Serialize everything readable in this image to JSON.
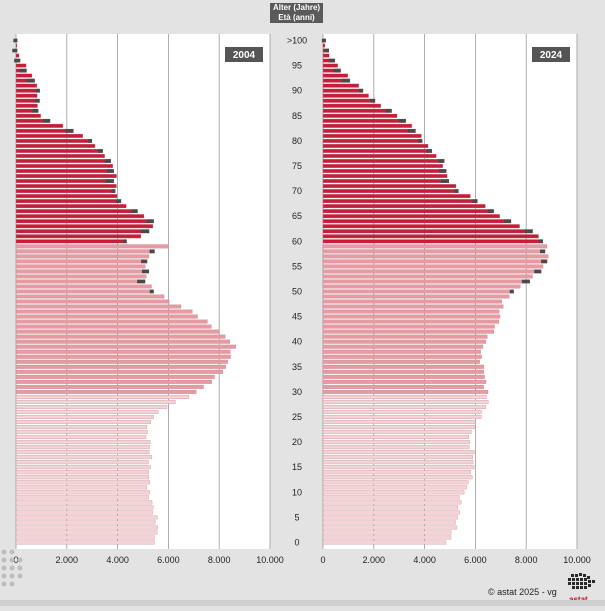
{
  "axis_title": {
    "line1": "Alter (Jahre)",
    "line2": "Età (anni)"
  },
  "footer": {
    "copyright_symbol": "©",
    "credit": "astat 2025 - vg"
  },
  "logo": {
    "text": "astat",
    "icon": "south-tyrol-map-icon",
    "color": "#c0142a"
  },
  "colors": {
    "light_bar": "#f4d3d6",
    "mid_bar": "#e89aa3",
    "dark_bar": "#c41e3a",
    "surplus": "#4a4a4a",
    "bar_outline": "#c08089"
  },
  "chart_data": [
    {
      "type": "bar",
      "orientation": "horizontal",
      "title": "2004",
      "xlim": [
        0,
        10000
      ],
      "x_ticks": [
        "0",
        "2.000",
        "4.000",
        "6.000",
        "8.000",
        "10.000"
      ],
      "y_ticks": [
        ">100",
        "95",
        "90",
        "85",
        "80",
        "75",
        "70",
        "65",
        "60",
        "55",
        "50",
        "45",
        "40",
        "35",
        "30",
        "25",
        "20",
        "15",
        "10",
        "5",
        "0"
      ],
      "anchors": [
        [
          0,
          5300
        ],
        [
          2,
          5450
        ],
        [
          5,
          5500
        ],
        [
          8,
          5450
        ],
        [
          10,
          5300
        ],
        [
          12,
          5250
        ],
        [
          15,
          5150
        ],
        [
          18,
          5200
        ],
        [
          20,
          5250
        ],
        [
          22,
          5200
        ],
        [
          25,
          5500
        ],
        [
          27,
          5900
        ],
        [
          29,
          6700
        ],
        [
          31,
          7300
        ],
        [
          33,
          7800
        ],
        [
          35,
          8300
        ],
        [
          37,
          8500
        ],
        [
          39,
          8700
        ],
        [
          40,
          8550
        ],
        [
          42,
          8000
        ],
        [
          44,
          7400
        ],
        [
          46,
          6800
        ],
        [
          48,
          6000
        ],
        [
          50,
          5500
        ],
        [
          52,
          5200
        ],
        [
          54,
          5300
        ],
        [
          56,
          5150
        ],
        [
          58,
          5400
        ],
        [
          59,
          5900
        ],
        [
          60,
          4300
        ],
        [
          62,
          5200
        ],
        [
          64,
          5400
        ],
        [
          66,
          4800
        ],
        [
          68,
          4200
        ],
        [
          70,
          4000
        ],
        [
          72,
          3900
        ],
        [
          74,
          3800
        ],
        [
          76,
          3600
        ],
        [
          78,
          3300
        ],
        [
          80,
          3000
        ],
        [
          82,
          2400
        ],
        [
          83,
          1900
        ],
        [
          84,
          1500
        ],
        [
          85,
          1000
        ],
        [
          87,
          850
        ],
        [
          89,
          800
        ],
        [
          91,
          750
        ],
        [
          93,
          550
        ],
        [
          95,
          380
        ],
        [
          97,
          200
        ],
        [
          99,
          100
        ],
        [
          100,
          60
        ]
      ]
    },
    {
      "type": "bar",
      "orientation": "horizontal",
      "title": "2024",
      "xlim": [
        0,
        10000
      ],
      "x_ticks": [
        "0",
        "2.000",
        "4.000",
        "6.000",
        "8.000",
        "10.000"
      ],
      "y_ticks": [
        ">100",
        "95",
        "90",
        "85",
        "80",
        "75",
        "70",
        "65",
        "60",
        "55",
        "50",
        "45",
        "40",
        "35",
        "30",
        "25",
        "20",
        "15",
        "10",
        "5",
        "0"
      ],
      "anchors": [
        [
          0,
          4750
        ],
        [
          3,
          5200
        ],
        [
          6,
          5450
        ],
        [
          9,
          5500
        ],
        [
          12,
          5700
        ],
        [
          15,
          5800
        ],
        [
          18,
          5900
        ],
        [
          20,
          5800
        ],
        [
          22,
          5950
        ],
        [
          25,
          6200
        ],
        [
          28,
          6400
        ],
        [
          31,
          6300
        ],
        [
          34,
          6400
        ],
        [
          37,
          6300
        ],
        [
          40,
          6400
        ],
        [
          42,
          6600
        ],
        [
          44,
          6800
        ],
        [
          46,
          6900
        ],
        [
          48,
          7100
        ],
        [
          50,
          7600
        ],
        [
          52,
          8200
        ],
        [
          54,
          8600
        ],
        [
          56,
          8800
        ],
        [
          58,
          8700
        ],
        [
          60,
          8600
        ],
        [
          62,
          8200
        ],
        [
          64,
          7400
        ],
        [
          66,
          6800
        ],
        [
          68,
          6200
        ],
        [
          70,
          5400
        ],
        [
          72,
          4900
        ],
        [
          74,
          4700
        ],
        [
          76,
          4650
        ],
        [
          78,
          4300
        ],
        [
          80,
          4050
        ],
        [
          82,
          3800
        ],
        [
          84,
          3300
        ],
        [
          86,
          2600
        ],
        [
          88,
          1900
        ],
        [
          90,
          1500
        ],
        [
          92,
          1100
        ],
        [
          94,
          800
        ],
        [
          96,
          550
        ],
        [
          98,
          250
        ],
        [
          100,
          80
        ]
      ]
    }
  ]
}
